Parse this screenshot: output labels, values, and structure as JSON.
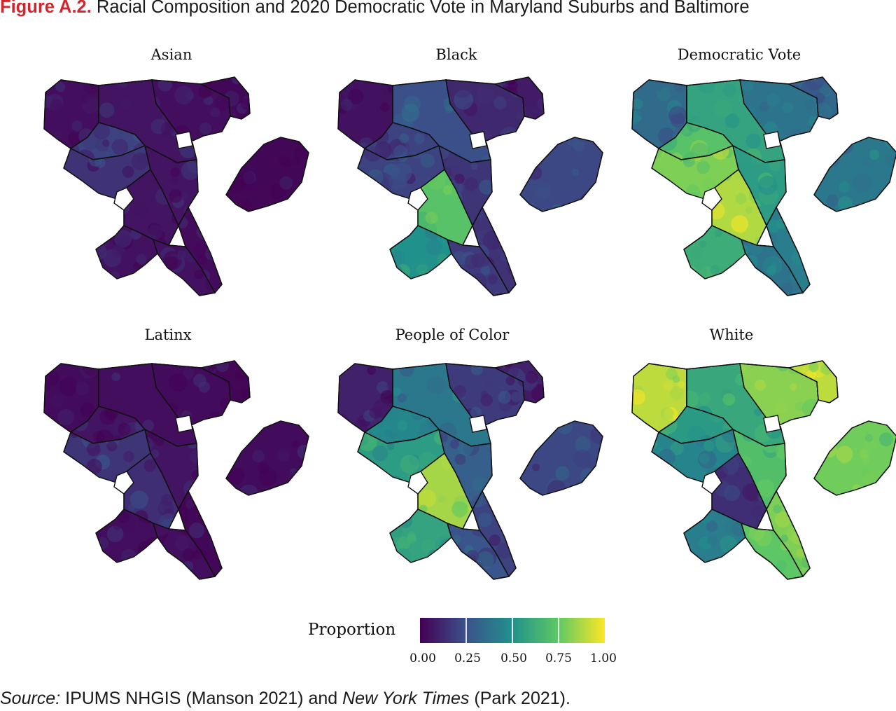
{
  "figure": {
    "label": "Figure A.2.",
    "title": "Racial Composition and 2020 Democratic Vote in Maryland Suburbs and Baltimore"
  },
  "panels": [
    {
      "title": "Asian",
      "scheme": "asian"
    },
    {
      "title": "Black",
      "scheme": "black"
    },
    {
      "title": "Democratic Vote",
      "scheme": "dem"
    },
    {
      "title": "Latinx",
      "scheme": "latinx"
    },
    {
      "title": "People of Color",
      "scheme": "poc"
    },
    {
      "title": "White",
      "scheme": "white"
    }
  ],
  "legend": {
    "title": "Proportion",
    "ticks": [
      "0.00",
      "0.25",
      "0.50",
      "0.75",
      "1.00"
    ],
    "palette": [
      "#440154",
      "#3b528b",
      "#21918c",
      "#5ec962",
      "#fde725"
    ]
  },
  "source": {
    "prefix": "Source:",
    "part1": " IPUMS NHGIS (Manson 2021) and ",
    "publication": "New York Times",
    "part2": " (Park 2021)."
  }
}
